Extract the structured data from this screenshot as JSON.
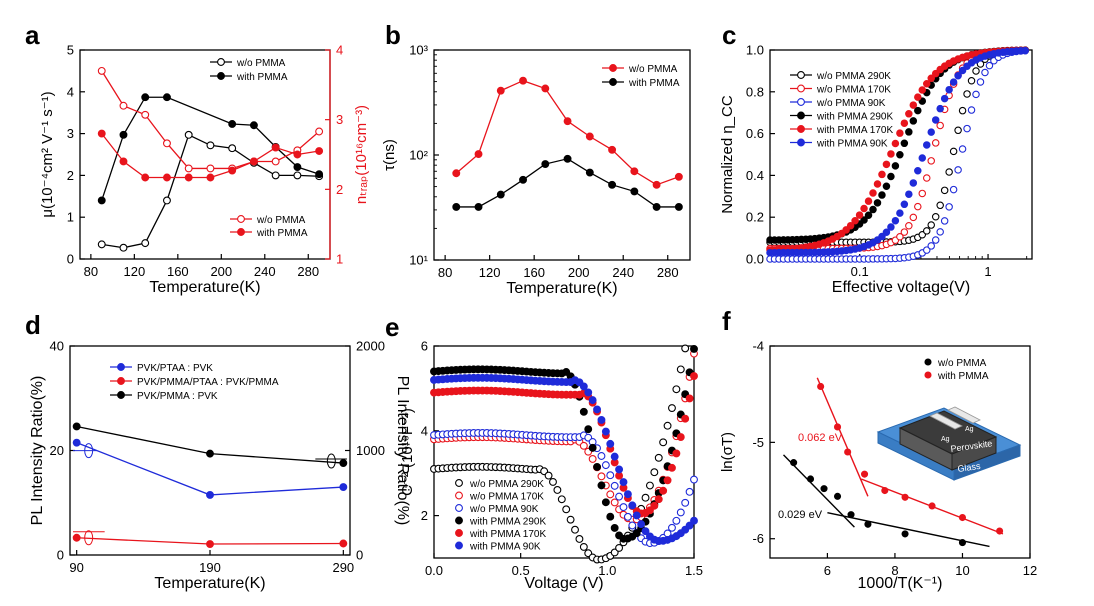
{
  "panel_labels": [
    "a",
    "b",
    "c",
    "d",
    "e",
    "f"
  ],
  "chart_data": [
    {
      "panel": "a",
      "type": "line",
      "xlabel": "Temperature(K)",
      "ylabel_left": "μ(10⁻⁴cm² V⁻¹ s⁻¹)",
      "ylabel_right": "nₜᵣₐₚ(10¹⁶cm⁻³)",
      "xlim": [
        70,
        300
      ],
      "ylim": [
        0,
        5
      ],
      "ylim_right": [
        1,
        4
      ],
      "xticks": [
        80,
        120,
        160,
        200,
        240,
        280
      ],
      "yticks": [
        0,
        1,
        2,
        3,
        4,
        5
      ],
      "yticks_right": [
        1,
        2,
        3,
        4
      ],
      "colors": {
        "left": "#000000",
        "right": "#e8141c"
      },
      "legend_top": [
        "w/o PMMA",
        "with PMMA"
      ],
      "legend_bottom": [
        "w/o PMMA",
        "with PMMA"
      ],
      "x": [
        90,
        110,
        130,
        150,
        170,
        190,
        210,
        230,
        250,
        270,
        290
      ],
      "series": [
        {
          "name": "w/o PMMA",
          "axis": "left",
          "marker": "open",
          "color": "#000000",
          "values": [
            0.35,
            0.27,
            0.38,
            1.4,
            2.97,
            2.72,
            2.65,
            2.3,
            2.0,
            2.0,
            1.98
          ]
        },
        {
          "name": "with PMMA",
          "axis": "left",
          "marker": "filled",
          "color": "#000000",
          "values": [
            1.4,
            2.97,
            3.87,
            3.87,
            null,
            null,
            3.23,
            3.2,
            2.68,
            2.2,
            2.03
          ]
        },
        {
          "name": "w/o PMMA",
          "axis": "right",
          "marker": "open",
          "color": "#e8141c",
          "values": [
            3.7,
            3.2,
            3.07,
            2.66,
            2.3,
            2.3,
            2.3,
            2.4,
            2.4,
            2.56,
            2.83
          ]
        },
        {
          "name": "with PMMA",
          "axis": "right",
          "marker": "filled",
          "color": "#e8141c",
          "values": [
            2.8,
            2.4,
            2.17,
            2.17,
            2.17,
            2.17,
            2.27,
            2.4,
            2.6,
            2.5,
            2.55
          ]
        }
      ]
    },
    {
      "panel": "b",
      "type": "line",
      "xlabel": "Temperature(K)",
      "ylabel": "τ(ns)",
      "yscale": "log",
      "xlim": [
        70,
        300
      ],
      "ylim": [
        10,
        1000
      ],
      "xticks": [
        80,
        120,
        160,
        200,
        240,
        280
      ],
      "ytick_labels": [
        "10¹",
        "10²",
        "10³"
      ],
      "legend": [
        "w/o PMMA",
        "with PMMA"
      ],
      "x": [
        90,
        110,
        130,
        150,
        170,
        190,
        210,
        230,
        250,
        270,
        290
      ],
      "series": [
        {
          "name": "w/o PMMA",
          "color": "#e8141c",
          "values": [
            67,
            102,
            410,
            510,
            430,
            210,
            150,
            112,
            70,
            52,
            62
          ]
        },
        {
          "name": "with PMMA",
          "color": "#000000",
          "values": [
            32,
            32,
            42,
            58,
            82,
            92,
            68,
            52,
            45,
            32,
            32
          ]
        }
      ]
    },
    {
      "panel": "c",
      "type": "scatter",
      "xlabel": "Effective voltage(V)",
      "ylabel": "Normalized η_CC",
      "xscale": "log",
      "xlim": [
        0.02,
        2.2
      ],
      "ylim": [
        0,
        1.0
      ],
      "yticks": [
        "0.0",
        "0.2",
        "0.4",
        "0.6",
        "0.8",
        "1.0"
      ],
      "xticks": [
        "0.1",
        "1"
      ],
      "legend": [
        "w/o PMMA 290K",
        "w/o PMMA 170K",
        "w/o PMMA 90K",
        "with PMMA 290K",
        "with PMMA 170K",
        "with PMMA 90K"
      ],
      "series": [
        {
          "name": "w/o PMMA 290K",
          "color": "#000000",
          "marker": "open",
          "v0": 0.55,
          "k": 5.5,
          "base": 0.08
        },
        {
          "name": "w/o PMMA 170K",
          "color": "#e8141c",
          "marker": "open",
          "v0": 0.38,
          "k": 4.5,
          "base": 0.05
        },
        {
          "name": "w/o PMMA 90K",
          "color": "#1f2bd9",
          "marker": "open",
          "v0": 0.62,
          "k": 5.0,
          "base": 0.0
        },
        {
          "name": "with PMMA 290K",
          "color": "#000000",
          "marker": "filled",
          "v0": 0.22,
          "k": 3.0,
          "base": 0.09
        },
        {
          "name": "with PMMA 170K",
          "color": "#e8141c",
          "marker": "filled",
          "v0": 0.18,
          "k": 2.6,
          "base": 0.04
        },
        {
          "name": "with PMMA 90K",
          "color": "#1f2bd9",
          "marker": "filled",
          "v0": 0.32,
          "k": 3.2,
          "base": 0.03
        }
      ]
    },
    {
      "panel": "d",
      "type": "line",
      "xlabel": "Temperature(K)",
      "ylabel_left": "PL Intensity Ratio(%)",
      "ylabel_right": "PL Intensity Ratio(%)",
      "xlim": [
        85,
        295
      ],
      "ylim": [
        0,
        40
      ],
      "ylim_right": [
        0,
        2000
      ],
      "xticks": [
        90,
        190,
        290
      ],
      "yticks": [
        0,
        20,
        40
      ],
      "yticks_right": [
        0,
        1000,
        2000
      ],
      "legend": [
        "PVK/PTAA : PVK",
        "PVK/PMMA/PTAA : PVK/PMMA",
        "PVK/PMMA : PVK"
      ],
      "x": [
        90,
        190,
        290
      ],
      "series": [
        {
          "name": "PVK/PTAA : PVK",
          "axis": "left",
          "color": "#1f2bd9",
          "values": [
            21.5,
            11.5,
            13.0
          ]
        },
        {
          "name": "PVK/PMMA/PTAA : PVK/PMMA",
          "axis": "left",
          "color": "#e8141c",
          "values": [
            3.3,
            2.1,
            2.2
          ]
        },
        {
          "name": "PVK/PMMA : PVK",
          "axis": "right",
          "color": "#000000",
          "values": [
            1230,
            970,
            880
          ]
        }
      ]
    },
    {
      "panel": "e",
      "type": "scatter",
      "xlabel": "Voltage (V)",
      "ylabel": "C⁻² (10¹⁶F⁻²)",
      "xlim": [
        0,
        1.5
      ],
      "ylim": [
        1,
        6
      ],
      "xticks": [
        "0.0",
        "0.5",
        "1.0",
        "1.5"
      ],
      "yticks": [
        2,
        4,
        6
      ],
      "legend": [
        "w/o PMMA 290K",
        "w/o PMMA 170K",
        "w/o PMMA 90K",
        "with PMMA 290K",
        "with PMMA 170K",
        "with PMMA 90K"
      ],
      "series": [
        {
          "name": "w/o PMMA 290K",
          "color": "#000000",
          "marker": "open",
          "plateau": 3.1,
          "drop": 0.6,
          "min": 0.96,
          "vmin": 0.95,
          "rise": 5.0
        },
        {
          "name": "w/o PMMA 170K",
          "color": "#e8141c",
          "marker": "open",
          "plateau": 3.8,
          "drop": 0.8,
          "min": 1.9,
          "vmin": 1.15,
          "rise": 8.0
        },
        {
          "name": "w/o PMMA 90K",
          "color": "#1f2bd9",
          "marker": "open",
          "plateau": 3.9,
          "drop": 0.85,
          "min": 1.35,
          "vmin": 1.25,
          "rise": 6.0
        },
        {
          "name": "with PMMA 290K",
          "color": "#000000",
          "marker": "filled",
          "plateau": 5.4,
          "drop": 0.75,
          "min": 1.45,
          "vmin": 1.1,
          "rise": 7.0
        },
        {
          "name": "with PMMA 170K",
          "color": "#e8141c",
          "marker": "filled",
          "plateau": 4.9,
          "drop": 0.85,
          "min": 2.05,
          "vmin": 1.2,
          "rise": 9.0
        },
        {
          "name": "with PMMA 90K",
          "color": "#1f2bd9",
          "marker": "filled",
          "plateau": 5.2,
          "drop": 0.8,
          "min": 1.4,
          "vmin": 1.3,
          "rise": 3.0
        }
      ]
    },
    {
      "panel": "f",
      "type": "scatter",
      "xlabel": "1000/T(K⁻¹)",
      "ylabel": "ln(σT)",
      "xlim": [
        4.3,
        12
      ],
      "ylim": [
        -6.2,
        -4
      ],
      "xticks": [
        6,
        8,
        10,
        12
      ],
      "yticks": [
        -4,
        -5,
        -6
      ],
      "legend": [
        "w/o PMMA",
        "with PMMA"
      ],
      "annotations": [
        "0.062 eV",
        "0.029 eV"
      ],
      "inset": {
        "top_label_1": "Ag",
        "top_label_2": "Ag",
        "layer": "Perovskite",
        "substrate": "Glass"
      },
      "series": [
        {
          "name": "w/o PMMA",
          "color": "#000000",
          "x": [
            5.0,
            5.5,
            5.9,
            6.3,
            6.7,
            7.2,
            8.3,
            10.0
          ],
          "y": [
            -5.21,
            -5.38,
            -5.48,
            -5.56,
            -5.75,
            -5.85,
            -5.95,
            -6.04
          ]
        },
        {
          "name": "with PMMA",
          "color": "#e8141c",
          "x": [
            5.8,
            6.3,
            6.6,
            7.1,
            7.7,
            8.3,
            9.1,
            10.0,
            11.1
          ],
          "y": [
            -4.42,
            -4.84,
            -5.1,
            -5.33,
            -5.5,
            -5.57,
            -5.66,
            -5.78,
            -5.92
          ]
        }
      ],
      "fits": [
        {
          "color": "#e8141c",
          "x": [
            5.7,
            7.2
          ],
          "y": [
            -4.33,
            -5.56
          ]
        },
        {
          "color": "#e8141c",
          "x": [
            7.0,
            11.2
          ],
          "y": [
            -5.38,
            -5.95
          ]
        },
        {
          "color": "#000000",
          "x": [
            4.7,
            6.8
          ],
          "y": [
            -5.13,
            -5.88
          ]
        },
        {
          "color": "#000000",
          "x": [
            6.0,
            10.8
          ],
          "y": [
            -5.73,
            -6.08
          ]
        }
      ]
    }
  ]
}
